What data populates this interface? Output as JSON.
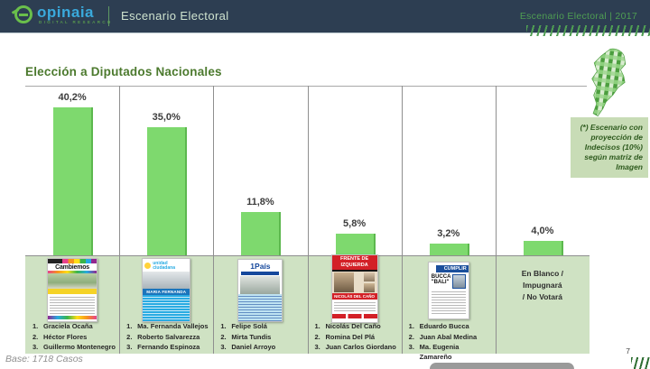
{
  "header": {
    "logo": {
      "brand": "opinaia",
      "tagline": "DIGITAL RESEARCH"
    },
    "section_title": "Escenario Electoral",
    "right_text": "Escenario Electoral | 2017"
  },
  "slide": {
    "title": "Elección a Diputados Nacionales",
    "note": "(*) Escenario con proyección de Indecisos (10%) según matriz de Imagen",
    "base": "Base: 1718 Casos",
    "page": "7"
  },
  "chart_data": {
    "type": "bar",
    "title": "Elección a Diputados Nacionales",
    "categories": [
      "Cambiemos",
      "Unidad Ciudadana",
      "1País",
      "Frente de Izquierda",
      "Cumplir",
      "En Blanco / Impugnará / No Votará"
    ],
    "values": [
      40.2,
      35.0,
      11.8,
      5.8,
      3.2,
      4.0
    ],
    "labels": [
      "40,2%",
      "35,0%",
      "11,8%",
      "5,8%",
      "3,2%",
      "4,0%"
    ],
    "ylim": [
      0,
      45
    ],
    "bar_color": "#7ed96e",
    "grid": "column-separators",
    "legend": "none"
  },
  "columns": [
    {
      "key": "cambiemos",
      "ballot": {
        "style": "cambiemos",
        "title": "Cambiemos"
      },
      "candidates": [
        "Graciela Ocaña",
        "Héctor Flores",
        "Guillermo Montenegro"
      ]
    },
    {
      "key": "unidad-ciudadana",
      "ballot": {
        "style": "unidad",
        "title": "unidad ciudadana",
        "strip": "MARIA FERNANDA"
      },
      "candidates": [
        "Ma. Fernanda Vallejos",
        "Roberto Salvarezza",
        "Fernando Espinoza"
      ]
    },
    {
      "key": "1pais",
      "ballot": {
        "style": "pais",
        "title": "1País"
      },
      "candidates": [
        "Felipe Solá",
        "Mirta Tundis",
        "Daniel Arroyo"
      ]
    },
    {
      "key": "frente-de-izquierda",
      "ballot": {
        "style": "izquierda",
        "title": "FRENTE DE IZQUIERDA",
        "strip": "NICOLÁS DEL CAÑO"
      },
      "candidates": [
        "Nicolás Del Caño",
        "Romina Del Plá",
        "Juan Carlos Giordano"
      ]
    },
    {
      "key": "cumplir",
      "ballot": {
        "style": "cumplir",
        "title": "CUMPLIR",
        "strip": "BUCCA \"BALI\""
      },
      "candidates": [
        "Eduardo Bucca",
        "Juan Abal Medina",
        "Ma. Eugenia Zamareño"
      ]
    },
    {
      "key": "en-blanco",
      "ballot": null,
      "blank_lines": [
        "En Blanco /",
        "Impugnará",
        "/ No Votará"
      ],
      "candidates": []
    }
  ]
}
